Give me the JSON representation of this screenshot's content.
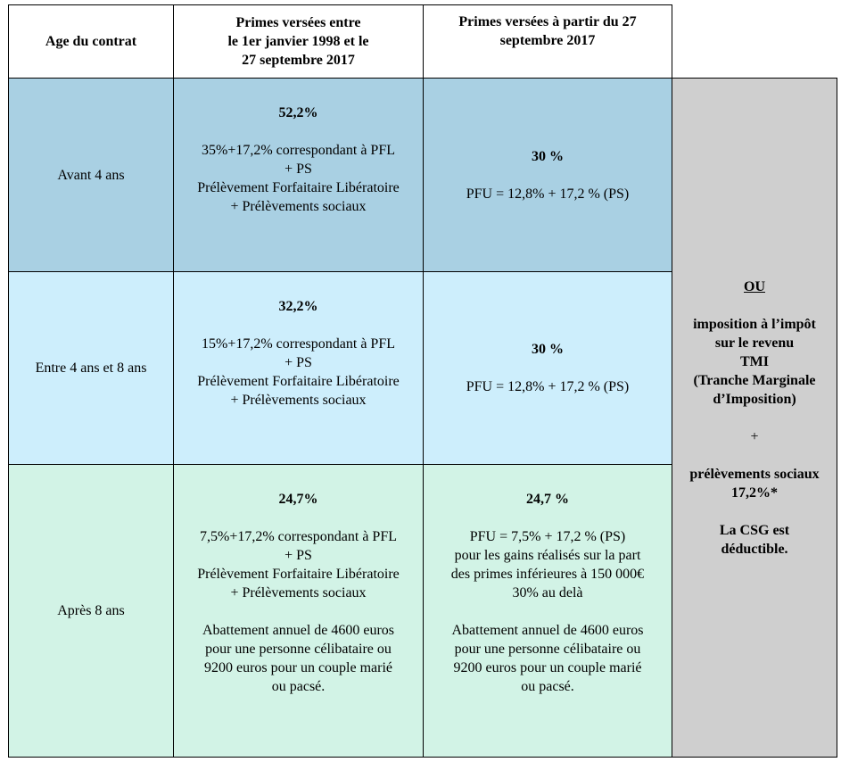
{
  "headers": {
    "age": "Age du contrat",
    "period1": [
      "Primes versées entre",
      "le 1er janvier 1998 et le",
      "27 septembre 2017"
    ],
    "period2": [
      "Primes versées à partir du 27",
      "septembre 2017"
    ]
  },
  "rows": [
    {
      "age": "Avant 4 ans",
      "p1_rate": "52,2%",
      "p1_lines": [
        "35%+17,2% correspondant à PFL",
        "+ PS",
        "Prélèvement Forfaitaire Libératoire",
        "+ Prélèvements sociaux"
      ],
      "p2_rate": "30 %",
      "p2_lines": [
        "PFU = 12,8% + 17,2 % (PS)"
      ]
    },
    {
      "age": "Entre 4 ans et 8 ans",
      "p1_rate": "32,2%",
      "p1_lines": [
        "15%+17,2% correspondant à PFL",
        "+ PS",
        "Prélèvement Forfaitaire Libératoire",
        "+ Prélèvements sociaux"
      ],
      "p2_rate": "30 %",
      "p2_lines": [
        "PFU = 12,8% + 17,2 % (PS)"
      ]
    },
    {
      "age": "Après 8 ans",
      "p1_rate": "24,7%",
      "p1_lines": [
        "7,5%+17,2% correspondant à PFL",
        "+ PS",
        "Prélèvement Forfaitaire Libératoire",
        "+ Prélèvements sociaux"
      ],
      "p1_abatt": [
        "Abattement annuel de 4600 euros",
        "pour une personne célibataire ou",
        "9200 euros pour un couple marié",
        "ou pacsé."
      ],
      "p2_rate": "24,7 %",
      "p2_lines": [
        "PFU = 7,5% + 17,2 % (PS)",
        "pour les gains réalisés sur la part",
        "des primes inférieures à 150 000€",
        "30% au delà"
      ],
      "p2_abatt": [
        "Abattement annuel de 4600 euros",
        "pour une personne célibataire ou",
        "9200 euros pour un couple marié",
        "ou pacsé."
      ]
    }
  ],
  "side": {
    "ou": "OU",
    "ir_lines": [
      "imposition à l’impôt",
      "sur le revenu",
      "TMI",
      "(Tranche Marginale",
      "d’Imposition)"
    ],
    "plus": "+",
    "ps_lines": [
      "prélèvements sociaux",
      "17,2%*"
    ],
    "csg_lines": [
      "La CSG est",
      "déductible."
    ]
  }
}
